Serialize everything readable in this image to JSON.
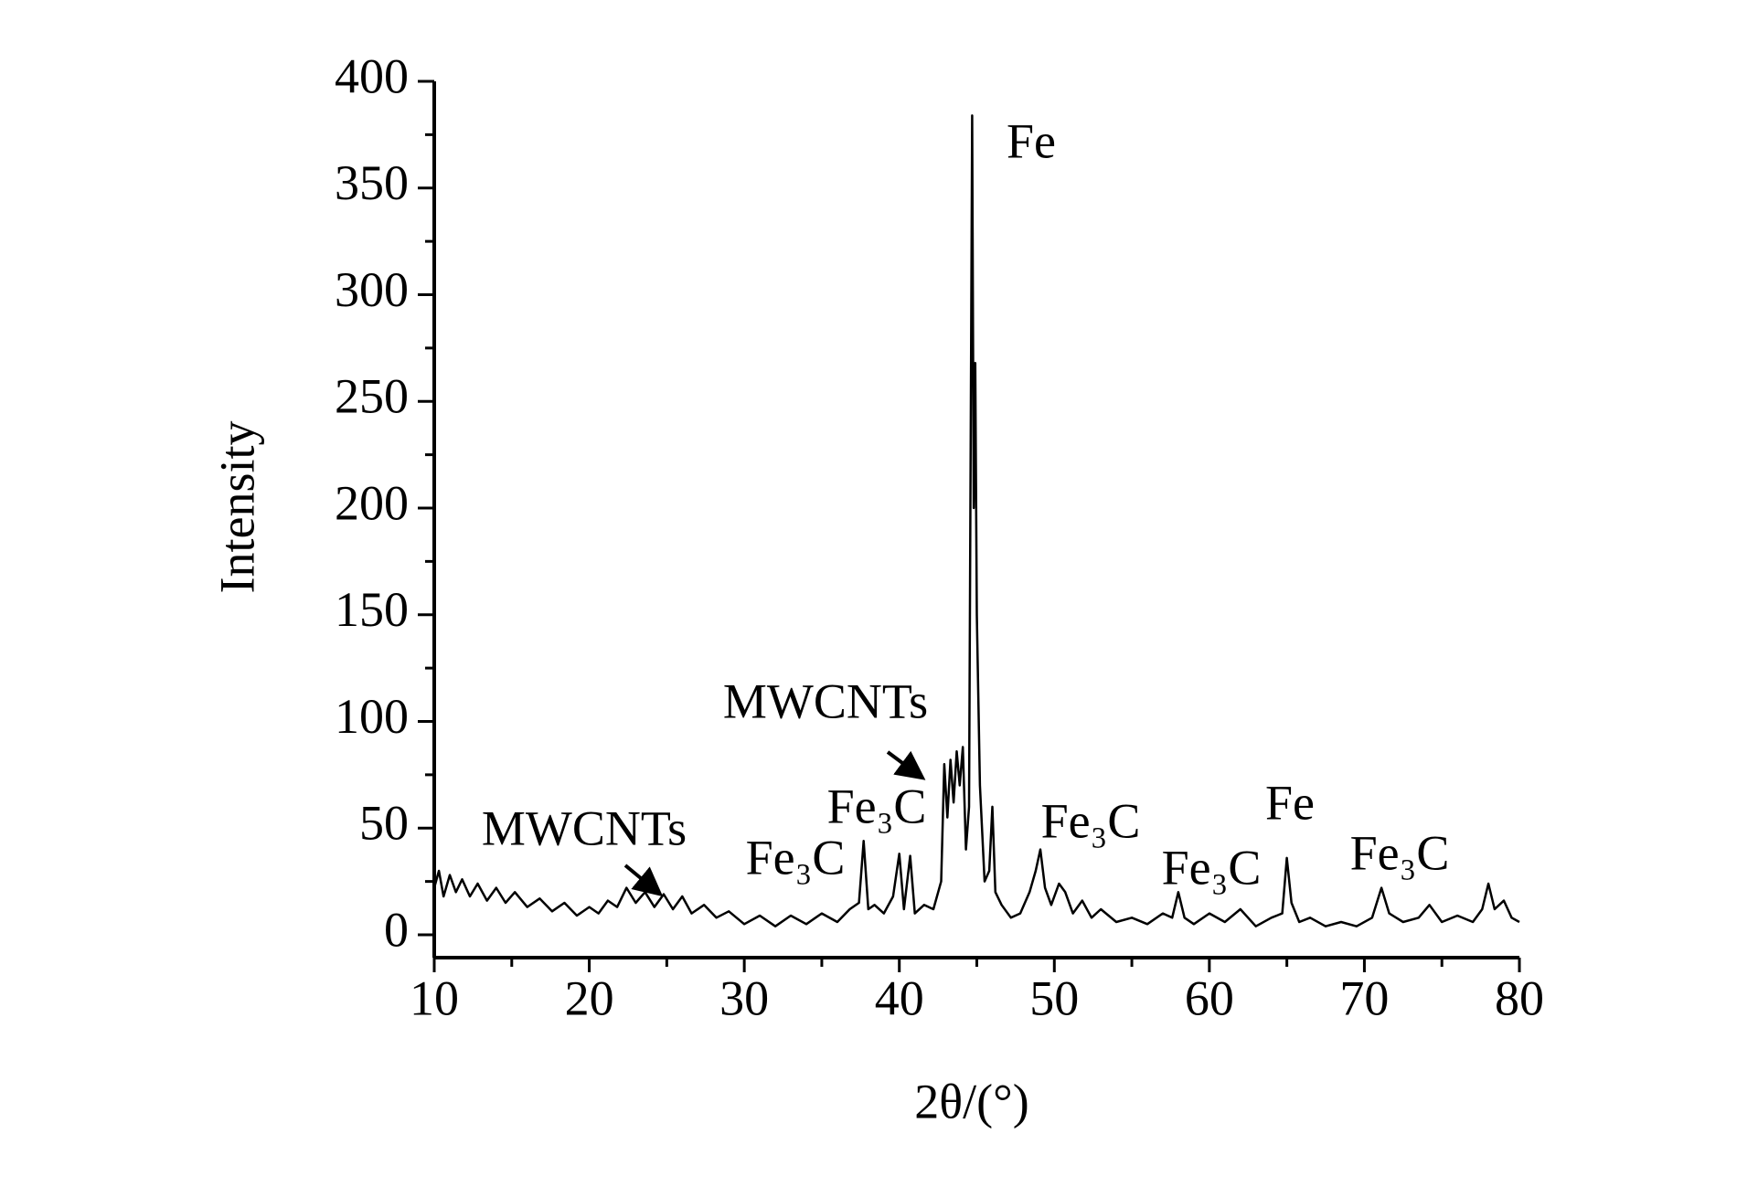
{
  "chart_data": {
    "type": "line",
    "xlabel": "2θ/(°)",
    "ylabel": "Intensity",
    "color": "#000000",
    "x": [
      10,
      10.3,
      10.6,
      11,
      11.4,
      11.8,
      12.3,
      12.8,
      13.4,
      14,
      14.6,
      15.2,
      16,
      16.8,
      17.6,
      18.4,
      19.2,
      20,
      20.6,
      21.2,
      21.8,
      22.4,
      23,
      23.6,
      24.2,
      24.8,
      25.4,
      26,
      26.6,
      27.4,
      28.2,
      29,
      30,
      31,
      32,
      33,
      34,
      35,
      36,
      36.8,
      37.4,
      37.7,
      38,
      38.4,
      39,
      39.6,
      40,
      40.3,
      40.7,
      41,
      41.6,
      42.2,
      42.7,
      42.9,
      43.1,
      43.3,
      43.5,
      43.7,
      43.9,
      44.1,
      44.3,
      44.5,
      44.7,
      44.8,
      44.9,
      45,
      45.2,
      45.5,
      45.8,
      46,
      46.2,
      46.6,
      47.2,
      47.8,
      48.4,
      48.8,
      49.1,
      49.4,
      49.8,
      50.3,
      50.7,
      51.2,
      51.8,
      52.4,
      53,
      54,
      55,
      56,
      57,
      57.6,
      58,
      58.4,
      59,
      60,
      61,
      62,
      63,
      64,
      64.7,
      65,
      65.3,
      65.8,
      66.5,
      67.5,
      68.5,
      69.5,
      70.5,
      71.1,
      71.6,
      72.5,
      73.5,
      74.2,
      75,
      76,
      77,
      77.6,
      78,
      78.4,
      79,
      79.5,
      80
    ],
    "values": [
      22,
      30,
      18,
      28,
      20,
      26,
      18,
      24,
      16,
      22,
      15,
      20,
      13,
      17,
      11,
      15,
      9,
      13,
      10,
      16,
      13,
      22,
      15,
      20,
      13,
      19,
      12,
      18,
      10,
      14,
      8,
      11,
      5,
      9,
      4,
      9,
      5,
      10,
      6,
      12,
      15,
      44,
      12,
      14,
      10,
      18,
      38,
      12,
      37,
      10,
      14,
      12,
      25,
      80,
      55,
      82,
      62,
      86,
      70,
      88,
      40,
      60,
      384,
      200,
      268,
      150,
      70,
      25,
      30,
      60,
      20,
      14,
      8,
      10,
      20,
      30,
      40,
      22,
      14,
      24,
      20,
      10,
      16,
      8,
      12,
      6,
      8,
      5,
      10,
      8,
      20,
      8,
      5,
      10,
      6,
      12,
      4,
      8,
      10,
      36,
      15,
      6,
      8,
      4,
      6,
      4,
      8,
      22,
      10,
      6,
      8,
      14,
      6,
      9,
      6,
      12,
      24,
      12,
      16,
      8,
      6
    ],
    "xlim": [
      10,
      80
    ],
    "xticks": [
      10,
      20,
      30,
      40,
      50,
      60,
      70,
      80
    ],
    "ylim": [
      0,
      400
    ],
    "yticks": [
      0,
      50,
      100,
      150,
      200,
      250,
      300,
      350,
      400
    ],
    "annotations": [
      "Fe",
      "MWCNTs",
      "Fe₃C",
      "MWCNTs",
      "Fe₃C",
      "Fe₃C",
      "Fe",
      "Fe₃C",
      "Fe₃C"
    ]
  }
}
